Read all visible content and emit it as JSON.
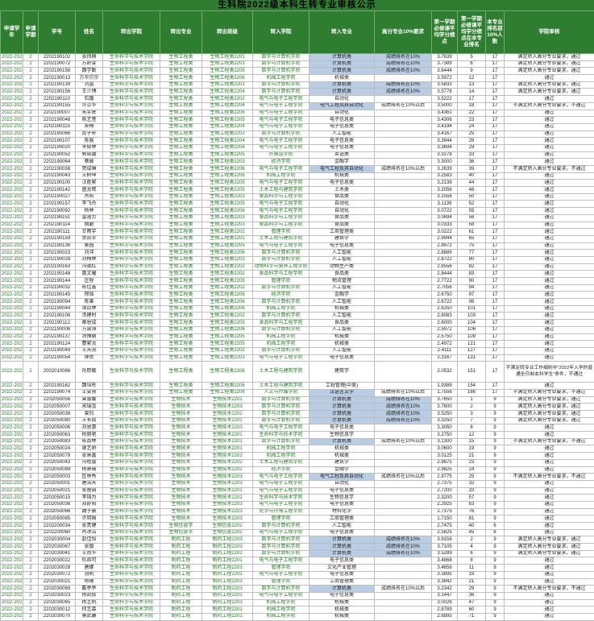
{
  "title": "生科院2022级本科生转专业审核公示",
  "columns": [
    "申请学年",
    "申请学期",
    "学号",
    "姓名",
    "转出学院",
    "转出专业",
    "转出班级",
    "转入学院",
    "转入专业",
    "高分专业10%要求",
    "第一学期必修课平均学分绩点",
    "第一学期必修课平均学分绩点在本专业排名",
    "本专业排名前10%人数",
    "学院审核"
  ],
  "colors": {
    "header_bg": "#2e7d31",
    "header_text": "#ffffff",
    "green_text": "#1e7a1e",
    "highlight_blue": "#b9cde5",
    "border": "#bdbdbd"
  },
  "audit_labels": {
    "pass": "通过",
    "meet_pass": "满足转入高分专业要求，通过",
    "not_meet_fail": "不满足转入高分专业要求，不通过",
    "rule_fail": "不满足转专业工作细则中“2022年入学的普通全日制本科学生”条件，不通过"
  },
  "requirement_labels": {
    "top10": "成绩排名在10%",
    "after10": "成绩排名在10%以后"
  },
  "highlight_major": [
    1,
    2,
    3,
    5,
    6,
    8,
    17,
    47,
    48,
    49,
    50,
    51,
    54,
    59,
    68,
    69,
    70,
    75
  ],
  "highlight_requirement": [
    1,
    2,
    3,
    5,
    6,
    48,
    49,
    50,
    51,
    68,
    69,
    70
  ],
  "tall_rows": [
    45
  ],
  "rows": [
    [
      "2022-2023",
      "2",
      "2202190102",
      "张炜楠",
      "生命科学与技术学院",
      "生物工程类",
      "生物工程类2201",
      "数学与计算机学院",
      "计算机类",
      "成绩排名在10%",
      "3.7639",
      "5",
      "17",
      "满足转入高分专业要求，通过"
    ],
    [
      "2022-2023",
      "2",
      "2202190072",
      "万舒雯",
      "生命科学与技术学院",
      "生物工程类",
      "生物工程类2203",
      "数学与计算机学院",
      "计算机类",
      "成绩排名在10%",
      "3.7389",
      "6",
      "17",
      "满足转入高分专业要求，通过"
    ],
    [
      "2022-2023",
      "2",
      "2202190158",
      "魏学勤",
      "生命科学与技术学院",
      "生物工程类",
      "生物工程类2205",
      "数学与计算机学院",
      "计算机类",
      "成绩排名在10%",
      "3.6444",
      "9",
      "17",
      "满足转入高分专业要求，通过"
    ],
    [
      "2022-2023",
      "2",
      "2202190013",
      "方华贝尔",
      "生命科学与技术学院",
      "生物工程类",
      "生物工程类2206",
      "机械工程学院",
      "机械类",
      "",
      "3.5972",
      "12",
      "17",
      "通过"
    ],
    [
      "2022-2023",
      "2",
      "2202190139",
      "刘晶",
      "生命科学与技术学院",
      "生物工程类",
      "生物工程类2201",
      "数学与计算机学院",
      "计算机类",
      "成绩排名在10%",
      "3.5833",
      "13",
      "17",
      "满足转入高分专业要求，通过"
    ],
    [
      "2022-2023",
      "2",
      "2202190156",
      "王少博",
      "生命科学与技术学院",
      "生物工程类",
      "生物工程类2204",
      "数学与计算机学院",
      "计算机类",
      "成绩排名在10%",
      "3.5778",
      "14",
      "17",
      "满足转入高分专业要求，通过"
    ],
    [
      "2022-2023",
      "2",
      "2202190110",
      "石璐",
      "生命科学与技术学院",
      "生物工程类",
      "生物工程类2202",
      "电气与电子工程学院",
      "自动化",
      "",
      "3.5222",
      "17",
      "17",
      "通过"
    ],
    [
      "2022-2023",
      "2",
      "2202190155",
      "许京华",
      "生命科学与技术学院",
      "生物工程类",
      "生物工程类2204",
      "电气与电子工程学院",
      "电气工程及其自动化",
      "成绩排名在10%以后",
      "3.5000",
      "18",
      "17",
      "不满足转入高分专业要求，不通过"
    ],
    [
      "2022-2023",
      "2",
      "2202190007",
      "朱宇辉",
      "生命科学与技术学院",
      "生物工程类",
      "生物工程类2206",
      "电气与电子工程学院",
      "自动化",
      "",
      "3.4361",
      "22",
      "17",
      "通过"
    ],
    [
      "2022-2023",
      "2",
      "2202190048",
      "陈艺萱",
      "生命科学与技术学院",
      "生物工程类",
      "生物工程类2205",
      "电气与电子工程学院",
      "电子信息类",
      "",
      "3.4306",
      "23",
      "17",
      "通过"
    ],
    [
      "2022-2023",
      "2",
      "2202190115",
      "吴楠",
      "生命科学与技术学院",
      "生物工程类",
      "生物工程类2204",
      "电气与电子工程学院",
      "电子信息类",
      "",
      "3.4194",
      "24",
      "17",
      "通过"
    ],
    [
      "2022-2023",
      "2",
      "2202190066",
      "晁子轩",
      "生命科学与技术学院",
      "生物工程类",
      "生物工程类2202",
      "数学与计算机学院",
      "人工智能",
      "",
      "3.4167",
      "25",
      "17",
      "通过"
    ],
    [
      "2022-2023",
      "2",
      "2202190107",
      "陈骏",
      "生命科学与技术学院",
      "生物工程类",
      "生物工程类2204",
      "电气与电子工程学院",
      "电子信息类",
      "",
      "3.3944",
      "26",
      "17",
      "通过"
    ],
    [
      "2022-2023",
      "2",
      "2202190020",
      "李俊林",
      "生命科学与技术学院",
      "生物工程类",
      "生物工程类2204",
      "电气与电子工程学院",
      "电子信息类",
      "",
      "3.3694",
      "29",
      "17",
      "通过"
    ],
    [
      "2022-2023",
      "2",
      "2202190052",
      "郭晓璐",
      "生命科学与技术学院",
      "生物工程类",
      "生物工程类2205",
      "外国语学院",
      "英语类",
      "",
      "3.3278",
      "33",
      "17",
      "通过"
    ],
    [
      "2022-2023",
      "2",
      "2202190064",
      "蔡晨",
      "生命科学与技术学院",
      "生物工程类",
      "生物工程类2203",
      "经济学院",
      "金融学",
      "",
      "3.3000",
      "36",
      "17",
      "通过"
    ],
    [
      "2022-2023",
      "2",
      "2202190038",
      "贺成琳",
      "生命科学与技术学院",
      "生物工程类",
      "生物工程类2206",
      "电气与电子工程学院",
      "电气工程及其自动化",
      "成绩排名在10%以后",
      "3.2639",
      "39",
      "17",
      "不满足转入高分专业要求，不通过"
    ],
    [
      "2022-2023",
      "2",
      "2202190043",
      "王树坤",
      "生命科学与技术学院",
      "生物工程类",
      "生物工程类2206",
      "机械工程学院",
      "机械类",
      "",
      "3.2583",
      "40",
      "17",
      "通过"
    ],
    [
      "2022-2023",
      "2",
      "2202190100",
      "汪胜繁",
      "生命科学与技术学院",
      "生物工程类",
      "生物工程类2205",
      "电气与电子工程学院",
      "电子信息类",
      "",
      "3.2139",
      "44",
      "17",
      "通过"
    ],
    [
      "2022-2023",
      "2",
      "2202190142",
      "盛龙辉",
      "生命科学与技术学院",
      "生物工程类",
      "生物工程类2205",
      "土木工程与建筑学院",
      "土木类",
      "",
      "3.2056",
      "46",
      "17",
      "通过"
    ],
    [
      "2022-2023",
      "2",
      "2202190027",
      "肖阳",
      "生命科学与技术学院",
      "生物工程类",
      "生物工程类2203",
      "食品科学与工程学院",
      "食品类",
      "",
      "3.1556",
      "50",
      "17",
      "通过"
    ],
    [
      "2022-2023",
      "2",
      "2202190157",
      "李飞舟",
      "生命科学与技术学院",
      "生物工程类",
      "生物工程类2205",
      "电气与电子工程学院",
      "自动化",
      "",
      "3.1139",
      "52",
      "17",
      "通过"
    ],
    [
      "2022-2023",
      "2",
      "2202190092",
      "杨林",
      "生命科学与技术学院",
      "生物工程类",
      "生物工程类2206",
      "电气与电子工程学院",
      "自动化",
      "",
      "3.0722",
      "55",
      "17",
      "通过"
    ],
    [
      "2022-2023",
      "2",
      "2202190151",
      "雷漫芳",
      "生命科学与技术学院",
      "生物工程类",
      "生物工程类2203",
      "食品科学与工程学院",
      "食品类",
      "",
      "3.0694",
      "56",
      "17",
      "通过"
    ],
    [
      "2022-2023",
      "2",
      "2202190114",
      "胡勤",
      "生命科学与技术学院",
      "生物工程类",
      "生物工程类2203",
      "食品科学与工程学院",
      "食品类",
      "",
      "3.0333",
      "58",
      "17",
      "通过"
    ],
    [
      "2022-2023",
      "2",
      "2202190111",
      "甘雨宇",
      "生命科学与技术学院",
      "生物工程类",
      "生物工程类2202",
      "管理学院",
      "工商管理类",
      "",
      "3.0222",
      "61",
      "17",
      "通过"
    ],
    [
      "2022-2023",
      "2",
      "2202190159",
      "贺宛宇",
      "生命科学与技术学院",
      "生物工程类",
      "生物工程类2201",
      "土木工程与建筑学院",
      "建筑学",
      "",
      "2.9944",
      "65",
      "17",
      "通过"
    ],
    [
      "2022-2023",
      "2",
      "2202190136",
      "黄园",
      "生命科学与技术学院",
      "生物工程类",
      "生物工程类2205",
      "电气与电子工程学院",
      "电子信息类",
      "",
      "2.8972",
      "75",
      "17",
      "通过"
    ],
    [
      "2022-2023",
      "2",
      "2202190023",
      "刘冲",
      "生命科学与技术学院",
      "生物工程类",
      "生物工程类2206",
      "数学与计算机学院",
      "人工智能",
      "",
      "2.8889",
      "77",
      "17",
      "通过"
    ],
    [
      "2022-2023",
      "2",
      "2202190028",
      "刘梅林",
      "生命科学与技术学院",
      "生物工程类",
      "生物工程类2203",
      "数学与计算机学院",
      "人工智能",
      "",
      "2.8722",
      "80",
      "17",
      "通过"
    ],
    [
      "2022-2023",
      "2",
      "2202190163",
      "冯斌红",
      "生命科学与技术学院",
      "生物工程类",
      "生物工程类2202",
      "动物科学与营养工程学院",
      "动物生产类",
      "",
      "2.8556",
      "82",
      "17",
      "通过"
    ],
    [
      "2022-2023",
      "2",
      "2202190148",
      "惠文耀",
      "生命科学与技术学院",
      "生物工程类",
      "生物工程类2202",
      "食品科学与工程学院",
      "食品类",
      "",
      "2.8444",
      "83",
      "17",
      "通过"
    ],
    [
      "2022-2023",
      "2",
      "2202190144",
      "庄程",
      "生命科学与技术学院",
      "生物工程类",
      "生物工程类2205",
      "管理学院",
      "物流管理",
      "",
      "2.7722",
      "90",
      "17",
      "通过"
    ],
    [
      "2022-2023",
      "2",
      "2202190032",
      "陈佳鑫",
      "生命科学与技术学院",
      "生物工程类",
      "生物工程类2202",
      "数学与计算机学院",
      "人工智能",
      "",
      "2.7056",
      "94",
      "17",
      "通过"
    ],
    [
      "2022-2023",
      "2",
      "2202190145",
      "邢铭",
      "生命科学与技术学院",
      "生物工程类",
      "生物工程类2206",
      "经济学院",
      "金融学",
      "",
      "2.6750",
      "97",
      "17",
      "通过"
    ],
    [
      "2022-2023",
      "2",
      "2202190094",
      "陈果",
      "生命科学与技术学院",
      "生物工程类",
      "生物工程类2206",
      "数学与计算机学院",
      "人工智能",
      "",
      "2.6722",
      "98",
      "17",
      "通过"
    ],
    [
      "2022-2023",
      "2",
      "2202190044",
      "谭昆林",
      "生命科学与技术学院",
      "生物工程类",
      "生物工程类2206",
      "机械工程学院",
      "机械类",
      "",
      "2.6250",
      "101",
      "17",
      "通过"
    ],
    [
      "2022-2023",
      "2",
      "2202190106",
      "汤建时",
      "生命科学与技术学院",
      "生物工程类",
      "生物工程类2202",
      "数学与计算机学院",
      "人工智能",
      "",
      "2.6083",
      "103",
      "17",
      "通过"
    ],
    [
      "2022-2023",
      "2",
      "2202190112",
      "章恩成",
      "生命科学与技术学院",
      "生物工程类",
      "生物工程类2205",
      "食品科学与工程学院",
      "食品类",
      "",
      "2.6000",
      "104",
      "17",
      "通过"
    ],
    [
      "2022-2023",
      "2",
      "2202190006",
      "万波涛",
      "生命科学与技术学院",
      "生物工程类",
      "生物工程类2206",
      "数学与计算机学院",
      "人工智能",
      "",
      "2.5972",
      "106",
      "17",
      "通过"
    ],
    [
      "2022-2023",
      "2",
      "2202190137",
      "涂豫朝",
      "生命科学与技术学院",
      "生物工程类",
      "生物工程类2205",
      "机械工程学院",
      "机械类",
      "",
      "2.5750",
      "109",
      "17",
      "通过"
    ],
    [
      "2022-2023",
      "2",
      "2202190124",
      "曹繁汝",
      "生命科学与技术学院",
      "生物工程类",
      "生物工程类2205",
      "机械工程学院",
      "机械类",
      "",
      "2.4972",
      "121",
      "17",
      "通过"
    ],
    [
      "2022-2023",
      "2",
      "2202190049",
      "王天茂",
      "生命科学与技术学院",
      "生物工程类",
      "生物工程类2202",
      "数学与计算机学院",
      "人工智能",
      "",
      "2.4111",
      "127",
      "17",
      "通过"
    ],
    [
      "2022-2023",
      "2",
      "2202190054",
      "钟意",
      "生命科学与技术学院",
      "生物工程类",
      "生物工程类2203",
      "电气与电子工程学院",
      "电子信息类",
      "",
      "2.3167",
      "131",
      "17",
      "通过"
    ],
    [
      "2022-2023",
      "2",
      "2002010086",
      "孙熙敏",
      "生命科学与技术学院",
      "生物工程类",
      "生物工程类2206",
      "土木工程与建筑学院",
      "建筑学",
      "",
      "2.0532",
      "151",
      "17",
      "不满足转专业工作细则中“2022年入学的普通全日制本科学生”条件，不通过"
    ],
    [
      "2022-2023",
      "2",
      "2202190162",
      "魏培彤",
      "生命科学与技术学院",
      "生物工程类",
      "生物工程类2206",
      "土木工程与建筑学院",
      "工程管理(中美)",
      "",
      "1.9389",
      "154",
      "17",
      "通过"
    ],
    [
      "2022-2023",
      "2",
      "2202190074",
      "王雯熹",
      "生命科学与技术学院",
      "生物工程类",
      "生物工程类2206",
      "人文与传媒学院",
      "汉语言文学",
      "成绩排名在10%以后",
      "1.7556",
      "166",
      "17",
      "不满足转入高分专业要求，不通过"
    ],
    [
      "2022-2023",
      "2",
      "2202050056",
      "曾惠媛",
      "生命科学与技术学院",
      "生物技术",
      "生物技术2201",
      "数学与计算机学院",
      "计算机类",
      "成绩排名在10%",
      "3.7650",
      "1",
      "9",
      "满足转入高分专业要求，通过"
    ],
    [
      "2022-2023",
      "2",
      "2202050007",
      "宋瑞雪",
      "生命科学与技术学院",
      "生物技术",
      "生物技术2203",
      "数学与计算机学院",
      "计算机类",
      "成绩排名在10%",
      "3.7600",
      "2",
      "9",
      "满足转入高分专业要求，通过"
    ],
    [
      "2022-2023",
      "2",
      "2202050038",
      "曾钧",
      "生命科学与技术学院",
      "生物技术",
      "生物技术2202",
      "数学与计算机学院",
      "计算机类",
      "成绩排名在10%",
      "3.5250",
      "3",
      "9",
      "满足转入高分专业要求，通过"
    ],
    [
      "2022-2023",
      "2",
      "2202050080",
      "王长霞",
      "生命科学与技术学院",
      "生物技术",
      "生物技术2202",
      "数学与计算机学院",
      "计算机类",
      "成绩排名在10%",
      "3.3250",
      "7",
      "9",
      "满足转入高分专业要求，通过"
    ],
    [
      "2022-2023",
      "2",
      "2202050006",
      "刘恩惠",
      "生命科学与技术学院",
      "生物技术",
      "生物技术2203",
      "电气与电子工程学院",
      "电子信息类",
      "",
      "3.3050",
      "8",
      "9",
      "通过"
    ],
    [
      "2022-2023",
      "2",
      "2202050063",
      "杨丽艳",
      "生命科学与技术学院",
      "生物技术",
      "生物技术2201",
      "生命科学与技术学院",
      "生物信息学",
      "",
      "3.2750",
      "12",
      "9",
      "通过"
    ],
    [
      "2022-2023",
      "2",
      "2202050083",
      "陈品林",
      "生命科学与技术学院",
      "生物技术",
      "生物技术2201",
      "数学与计算机学院",
      "计算机类",
      "成绩排名在10%以后",
      "3.1300",
      "15",
      "9",
      "不满足转入高分专业要求，不通过"
    ],
    [
      "2022-2023",
      "2",
      "2202050024",
      "谢艺娇",
      "生命科学与技术学院",
      "生物技术",
      "生物技术2201",
      "机械工程学院",
      "机械类",
      "",
      "3.0600",
      "19",
      "9",
      "通过"
    ],
    [
      "2022-2023",
      "2",
      "2202050079",
      "张景鑫",
      "生命科学与技术学院",
      "生物技术",
      "生物技术2202",
      "机械工程学院",
      "机械类",
      "",
      "3.0125",
      "21",
      "9",
      "通过"
    ],
    [
      "2022-2023",
      "2",
      "2202050043",
      "冯程露",
      "生命科学与技术学院",
      "生物技术",
      "生物技术2202",
      "土木工程与建筑学院",
      "建筑学",
      "",
      "2.9875",
      "23",
      "9",
      "通过"
    ],
    [
      "2022-2023",
      "2",
      "2202050089",
      "杨景瑜",
      "生命科学与技术学院",
      "生物技术",
      "生物技术2202",
      "经济学院",
      "金融学",
      "",
      "2.9825",
      "24",
      "9",
      "通过"
    ],
    [
      "2022-2023",
      "2",
      "2202050003",
      "区林秀",
      "生命科学与技术学院",
      "生物技术",
      "生物技术2203",
      "电气与电子工程学院",
      "电气工程及其自动化",
      "成绩排名在10%以后",
      "2.9775",
      "25",
      "9",
      "不满足转入高分专业要求，不通过"
    ],
    [
      "2022-2023",
      "2",
      "2202050001",
      "唐浩天",
      "生命科学与技术学院",
      "生物技术",
      "生物技术2203",
      "电气与电子工程学院",
      "自动化",
      "",
      "2.7375",
      "32",
      "9",
      "通过"
    ],
    [
      "2022-2023",
      "2",
      "2202050021",
      "张留田",
      "生命科学与技术学院",
      "生物技术",
      "生物技术2201",
      "电气与电子工程学院",
      "电子信息类",
      "",
      "2.7200",
      "33",
      "9",
      "通过"
    ],
    [
      "2022-2023",
      "2",
      "2202050015",
      "李琦为",
      "生命科学与技术学院",
      "生物技术",
      "生物技术2202",
      "生命科学与技术学院",
      "生物信息学",
      "",
      "2.3200",
      "57",
      "9",
      "通过"
    ],
    [
      "2022-2023",
      "2",
      "2202050036",
      "郑舒阳",
      "生命科学与技术学院",
      "生物技术",
      "生物技术2203",
      "电气与电子工程学院",
      "电子信息类",
      "",
      "2.2925",
      "63",
      "9",
      "通过"
    ],
    [
      "2022-2023",
      "2",
      "2202050066",
      "魏子晨",
      "生命科学与技术学院",
      "生物技术",
      "生物技术2203",
      "化学与环境工程学院",
      "材料化学",
      "",
      "1.7375",
      "76",
      "9",
      "通过"
    ],
    [
      "2022-2023",
      "2",
      "2202050085",
      "许玥娴",
      "生命科学与技术学院",
      "生物技术",
      "生物技术2203",
      "管理学院",
      "工商管理类",
      "",
      "1.7150",
      "81",
      "9",
      "通过"
    ],
    [
      "2022-2023",
      "2",
      "2202200034",
      "张贵健",
      "生命科学与技术学院",
      "生物信息学",
      "生物信息2202",
      "数学与计算机学院",
      "人工智能",
      "",
      "2.7475",
      "40",
      "6",
      "通过"
    ],
    [
      "2022-2023",
      "2",
      "2202200060",
      "肖冰洁",
      "生命科学与技术学院",
      "生物信息学",
      "生物信息2202",
      "电气与电子工程学院",
      "电子信息类",
      "",
      "2.5825",
      "45",
      "6",
      "通过"
    ],
    [
      "2022-2023",
      "2",
      "2202030004",
      "赵佳怡",
      "生命科学与技术学院",
      "制药工程",
      "制药工程2203",
      "数学与计算机学院",
      "计算机类",
      "成绩排名在10%",
      "3.9158",
      "2",
      "9",
      "满足转入高分专业要求，通过"
    ],
    [
      "2022-2023",
      "2",
      "2202030067",
      "张镟",
      "生命科学与技术学院",
      "制药工程",
      "制药工程2203",
      "数学与计算机学院",
      "计算机类",
      "成绩排名在10%",
      "3.7105",
      "4",
      "9",
      "满足转入高分专业要求，通过"
    ],
    [
      "2022-2023",
      "2",
      "2202030041",
      "王尚华",
      "生命科学与技术学院",
      "制药工程",
      "制药工程2202",
      "数学与计算机学院",
      "计算机类",
      "成绩排名在10%",
      "3.5289",
      "6",
      "9",
      "满足转入高分专业要求，通过"
    ],
    [
      "2022-2023",
      "2",
      "2202030022",
      "杜昌可",
      "生命科学与技术学院",
      "制药工程",
      "制药工程2201",
      "电气与电子工程学院",
      "电子信息类",
      "",
      "3.4868",
      "8",
      "9",
      "通过"
    ],
    [
      "2022-2023",
      "2",
      "2202030028",
      "唐娜",
      "生命科学与技术学院",
      "制药工程",
      "制药工程2203",
      "管理学院",
      "文化产业管理",
      "",
      "3.4658",
      "11",
      "9",
      "通过"
    ],
    [
      "2022-2023",
      "2",
      "2202030072",
      "羽帆",
      "生命科学与技术学院",
      "制药工程",
      "制药工程2201",
      "电气与电子工程学院",
      "电子信息类",
      "",
      "3.3895",
      "19",
      "9",
      "通过"
    ],
    [
      "2022-2023",
      "2",
      "2202030021",
      "杨珊",
      "生命科学与技术学院",
      "制药工程",
      "制药工程2203",
      "管理学院",
      "工商管理类",
      "",
      "3.3842",
      "21",
      "9",
      "通过"
    ],
    [
      "2022-2023",
      "2",
      "2202030069",
      "戴亭亭",
      "生命科学与技术学院",
      "制药工程",
      "制药工程2203",
      "数学与计算机学院",
      "计算机类",
      "成绩排名在10%以后",
      "3.2342",
      "29",
      "9",
      "不满足转入高分专业要求，不通过"
    ],
    [
      "2022-2023",
      "2",
      "2202030023",
      "杨凯俊",
      "生命科学与技术学院",
      "制药工程",
      "制药工程2201",
      "电气与电子工程学院",
      "电子信息类",
      "",
      "3.1447",
      "36",
      "9",
      "通过"
    ],
    [
      "2022-2023",
      "2",
      "2202030065",
      "杨艺帆",
      "生命科学与技术学院",
      "制药工程",
      "制药工程2203",
      "机械工程学院",
      "机械类",
      "",
      "3.0026",
      "47",
      "9",
      "通过"
    ],
    [
      "2022-2023",
      "2",
      "2202030012",
      "何艺森",
      "生命科学与技术学院",
      "制药工程",
      "制药工程2201",
      "机械工程学院",
      "机械类",
      "",
      "2.8789",
      "60",
      "9",
      "通过"
    ],
    [
      "2022-2023",
      "2",
      "2202030070",
      "莫武康",
      "生命科学与技术学院",
      "制药工程",
      "制药工程2201",
      "机械工程学院",
      "机械类",
      "",
      "2.6895",
      "71",
      "9",
      "通过"
    ]
  ]
}
